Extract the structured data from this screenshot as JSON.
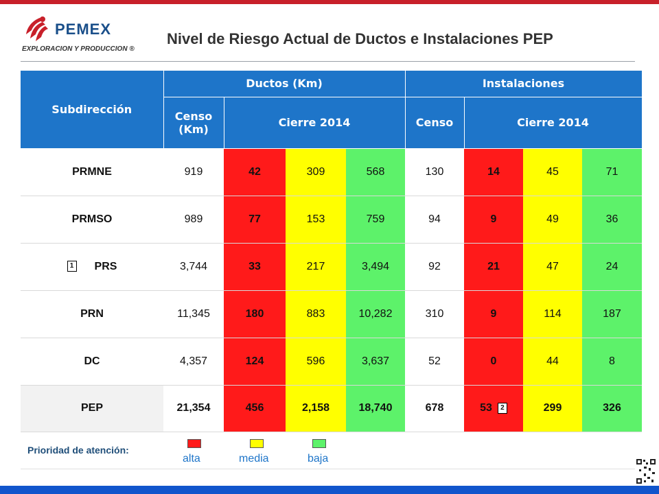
{
  "header": {
    "brand": "PEMEX",
    "brand_sub": "EXPLORACION Y PRODUCCION ®",
    "title": "Nivel de Riesgo Actual de Ductos e Instalaciones PEP"
  },
  "table": {
    "col_subdireccion": "Subdirección",
    "group_ductos": "Ductos (Km)",
    "group_instalaciones": "Instalaciones",
    "censo_km": "Censo (Km)",
    "cierre_ductos": "Cierre 2014",
    "censo": "Censo",
    "cierre_inst": "Cierre 2014",
    "note_marker_1": "1",
    "note_marker_2": "2",
    "rows": [
      {
        "name": "PRMNE",
        "d_censo": "919",
        "d_alta": "42",
        "d_media": "309",
        "d_baja": "568",
        "i_censo": "130",
        "i_alta": "14",
        "i_media": "45",
        "i_baja": "71"
      },
      {
        "name": "PRMSO",
        "d_censo": "989",
        "d_alta": "77",
        "d_media": "153",
        "d_baja": "759",
        "i_censo": "94",
        "i_alta": "9",
        "i_media": "49",
        "i_baja": "36"
      },
      {
        "name": "PRS",
        "d_censo": "3,744",
        "d_alta": "33",
        "d_media": "217",
        "d_baja": "3,494",
        "i_censo": "92",
        "i_alta": "21",
        "i_media": "47",
        "i_baja": "24"
      },
      {
        "name": "PRN",
        "d_censo": "11,345",
        "d_alta": "180",
        "d_media": "883",
        "d_baja": "10,282",
        "i_censo": "310",
        "i_alta": "9",
        "i_media": "114",
        "i_baja": "187"
      },
      {
        "name": "DC",
        "d_censo": "4,357",
        "d_alta": "124",
        "d_media": "596",
        "d_baja": "3,637",
        "i_censo": "52",
        "i_alta": "0",
        "i_media": "44",
        "i_baja": "8"
      },
      {
        "name": "PEP",
        "d_censo": "21,354",
        "d_alta": "456",
        "d_media": "2,158",
        "d_baja": "18,740",
        "i_censo": "678",
        "i_alta": "53",
        "i_media": "299",
        "i_baja": "326"
      }
    ]
  },
  "legend": {
    "label": "Prioridad de atención:",
    "alta": "alta",
    "media": "media",
    "baja": "baja",
    "colors": {
      "alta": "#ff1a1a",
      "media": "#ffff00",
      "baja": "#5df26a"
    }
  }
}
